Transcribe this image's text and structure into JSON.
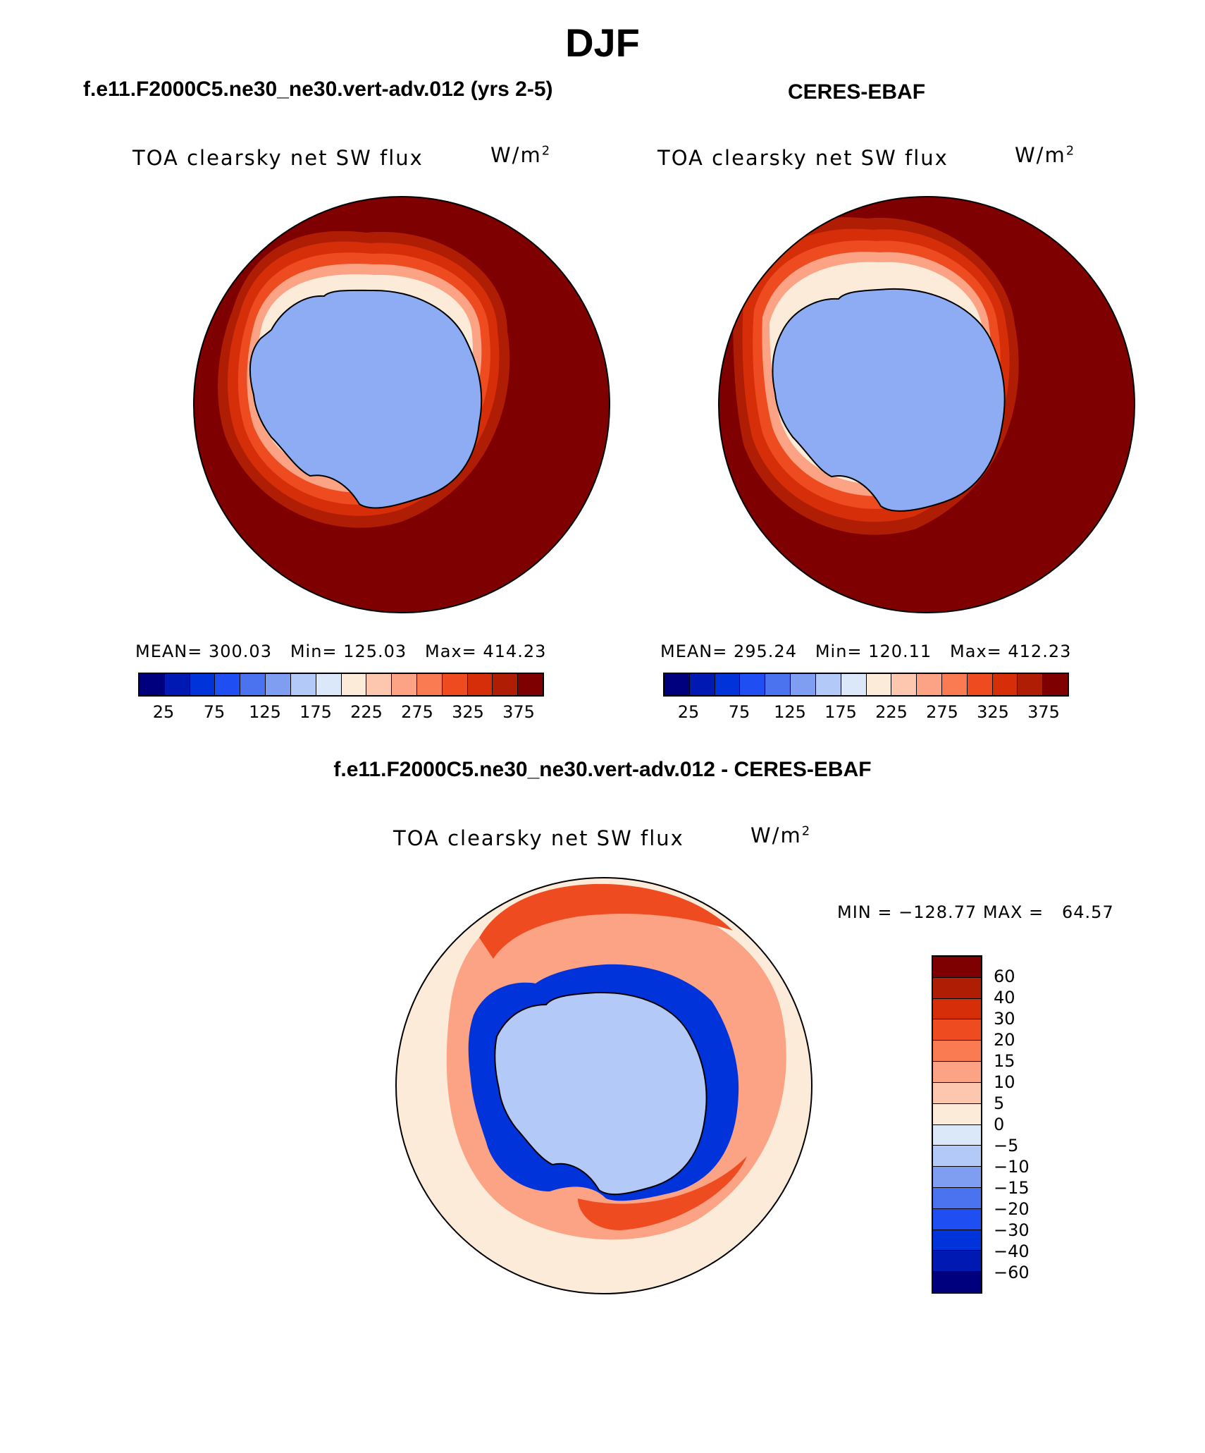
{
  "title": "DJF",
  "panels": {
    "left": {
      "case_title": "f.e11.F2000C5.ne30_ne30.vert-adv.012 (yrs 2-5)",
      "variable": "TOA clearsky net SW flux",
      "units_base": "W/m",
      "units_exp": "2",
      "stats": "MEAN= 300.03   Min= 125.03   Max= 414.23"
    },
    "right": {
      "case_title": "CERES-EBAF",
      "variable": "TOA clearsky net SW flux",
      "units_base": "W/m",
      "units_exp": "2",
      "stats": "MEAN= 295.24   Min= 120.11   Max= 412.23"
    },
    "diff": {
      "case_title": "f.e11.F2000C5.ne30_ne30.vert-adv.012 - CERES-EBAF",
      "variable": "TOA clearsky net SW flux",
      "units_base": "W/m",
      "units_exp": "2",
      "stats": "MIN = −128.77 MAX =   64.57"
    }
  },
  "colorbar_abs": {
    "colors": [
      "#00007f",
      "#0019b2",
      "#0033d9",
      "#1f4ff2",
      "#4b73f0",
      "#7f9ef2",
      "#b3c9f7",
      "#dbe8fa",
      "#fdebd9",
      "#fcc7ae",
      "#fca385",
      "#fa7a51",
      "#ef4b21",
      "#d72e0a",
      "#b01d05",
      "#7f0000"
    ],
    "tick_labels": [
      "25",
      "75",
      "125",
      "175",
      "225",
      "275",
      "325",
      "375"
    ]
  },
  "colorbar_diff": {
    "colors": [
      "#7f0000",
      "#b01d05",
      "#d72e0a",
      "#ef4b21",
      "#fa7a51",
      "#fca385",
      "#fcc7ae",
      "#fdebd9",
      "#dbe8fa",
      "#b3c9f7",
      "#7f9ef2",
      "#4b73f0",
      "#1f4ff2",
      "#0033d9",
      "#0019b2",
      "#00007f"
    ],
    "labels": [
      "60",
      "40",
      "30",
      "20",
      "15",
      "10",
      "5",
      "0",
      "−5",
      "−10",
      "−15",
      "−20",
      "−30",
      "−40",
      "−60"
    ]
  },
  "map_colors": {
    "ocean_high": "#7f0000",
    "ring_1": "#b01d05",
    "ring_2": "#d72e0a",
    "ring_3": "#ef4b21",
    "ring_4": "#fca385",
    "ring_5": "#fdebd9",
    "ice": "#8eacf3",
    "ice_light": "#b3c9f7",
    "diff_bg": "#fdebd9",
    "diff_pos": "#fca385",
    "diff_pos_strong": "#ef4b21",
    "diff_neg": "#0033d9",
    "diff_neg_light": "#b3c9f7"
  }
}
